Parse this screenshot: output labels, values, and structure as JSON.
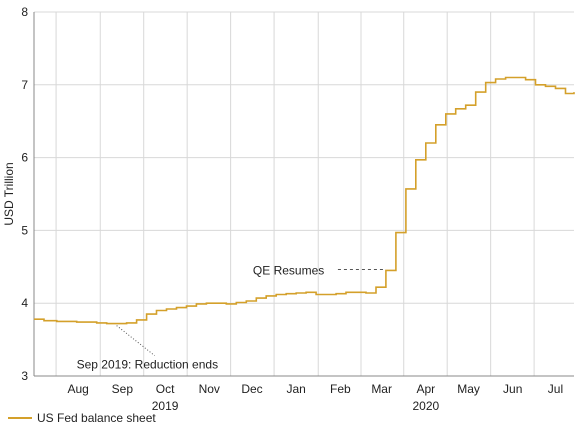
{
  "chart_data": {
    "type": "line",
    "title": "",
    "ylabel": "USD Trillion",
    "xlabel": "",
    "ylim": [
      3,
      8
    ],
    "yticks": [
      3,
      4,
      5,
      6,
      7,
      8
    ],
    "xlim": [
      "2019-07-15",
      "2020-07-28"
    ],
    "month_ticks": [
      "2019-08-15",
      "2019-09-15",
      "2019-10-15",
      "2019-11-15",
      "2019-12-15",
      "2020-01-15",
      "2020-02-15",
      "2020-03-15",
      "2020-04-15",
      "2020-05-15",
      "2020-06-15",
      "2020-07-15"
    ],
    "month_labels": [
      "Aug",
      "Sep",
      "Oct",
      "Nov",
      "Dec",
      "Jan",
      "Feb",
      "Mar",
      "Apr",
      "May",
      "Jun",
      "Jul"
    ],
    "year_labels": [
      {
        "text": "2019",
        "at": "2019-10-15"
      },
      {
        "text": "2020",
        "at": "2020-04-15"
      }
    ],
    "grid": {
      "x": true,
      "y": true
    },
    "legend_position": "bottom-left",
    "series": [
      {
        "name": "US Fed balance sheet",
        "color": "#d4a02a",
        "x": [
          "2019-07-15",
          "2019-07-22",
          "2019-07-31",
          "2019-08-07",
          "2019-08-14",
          "2019-08-21",
          "2019-08-28",
          "2019-09-04",
          "2019-09-11",
          "2019-09-18",
          "2019-09-25",
          "2019-10-02",
          "2019-10-09",
          "2019-10-16",
          "2019-10-23",
          "2019-10-30",
          "2019-11-06",
          "2019-11-13",
          "2019-11-20",
          "2019-11-27",
          "2019-12-04",
          "2019-12-11",
          "2019-12-18",
          "2019-12-25",
          "2020-01-01",
          "2020-01-08",
          "2020-01-15",
          "2020-01-22",
          "2020-01-29",
          "2020-02-05",
          "2020-02-12",
          "2020-02-19",
          "2020-02-26",
          "2020-03-04",
          "2020-03-11",
          "2020-03-18",
          "2020-03-25",
          "2020-04-01",
          "2020-04-08",
          "2020-04-15",
          "2020-04-22",
          "2020-04-29",
          "2020-05-06",
          "2020-05-13",
          "2020-05-20",
          "2020-05-27",
          "2020-06-03",
          "2020-06-10",
          "2020-06-17",
          "2020-06-24",
          "2020-07-01",
          "2020-07-08",
          "2020-07-15",
          "2020-07-22",
          "2020-07-28"
        ],
        "values": [
          3.78,
          3.76,
          3.75,
          3.75,
          3.74,
          3.74,
          3.73,
          3.72,
          3.72,
          3.73,
          3.77,
          3.85,
          3.9,
          3.92,
          3.94,
          3.96,
          3.99,
          4.0,
          4.0,
          3.99,
          4.01,
          4.03,
          4.07,
          4.1,
          4.12,
          4.13,
          4.14,
          4.15,
          4.12,
          4.12,
          4.13,
          4.15,
          4.15,
          4.14,
          4.22,
          4.45,
          4.97,
          5.57,
          5.97,
          6.2,
          6.45,
          6.6,
          6.67,
          6.72,
          6.9,
          7.03,
          7.08,
          7.1,
          7.1,
          7.07,
          7.0,
          6.98,
          6.95,
          6.88,
          6.9
        ]
      }
    ],
    "annotations": [
      {
        "text": "QE Resumes",
        "target_x": "2020-03-18",
        "target_y": 4.45,
        "style": "dashed-horizontal"
      },
      {
        "text": "Sep 2019: Reduction ends",
        "target_x": "2019-09-11",
        "target_y": 3.72,
        "style": "dotted-diagonal"
      }
    ]
  }
}
